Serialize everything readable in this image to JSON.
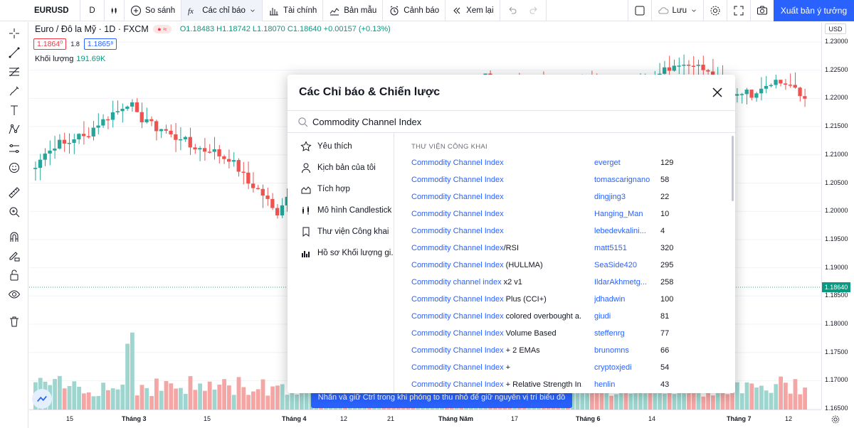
{
  "toolbar": {
    "symbol": "EURUSD",
    "interval": "D",
    "compare_label": "So sánh",
    "indicators_label": "Các chỉ báo",
    "financials_label": "Tài chính",
    "templates_label": "Bản mẫu",
    "alerts_label": "Cảnh báo",
    "replay_label": "Xem lại",
    "save_label": "Lưu",
    "publish_label": "Xuất bản ý tưởng"
  },
  "legend": {
    "symbol_title": "Euro / Đô la Mỹ · 1D · FXCM",
    "open": "O1.18483",
    "high": "H1.18742",
    "low": "L1.18070",
    "close": "C1.18640",
    "change": "+0.00157 (+0.13%)",
    "bid": "1.1864⁰",
    "spread": "1.8",
    "ask": "1.1865⁸",
    "volume_label": "Khối lượng",
    "volume_value": "191.69K"
  },
  "modal": {
    "title": "Các Chỉ báo & Chiến lược",
    "search_value": "Commodity Channel Index",
    "sidebar": [
      {
        "icon": "star-icon",
        "label": "Yêu thích"
      },
      {
        "icon": "user-icon",
        "label": "Kịch bản của tôi"
      },
      {
        "icon": "builtin-chart-icon",
        "label": "Tích hợp"
      },
      {
        "icon": "candlestick-icon",
        "label": "Mô hình Candlestick"
      },
      {
        "icon": "bookmark-icon",
        "label": "Thư viện Công khai"
      },
      {
        "icon": "volume-profile-icon",
        "label": "Hồ sơ Khối lượng gi..."
      }
    ],
    "section_title": "THƯ VIỆN CÔNG KHAI",
    "rows": [
      {
        "hl": "Commodity Channel Index",
        "rest": "",
        "author": "everget",
        "count": "129"
      },
      {
        "hl": "Commodity Channel Index",
        "rest": "",
        "author": "tomascarignano",
        "count": "58"
      },
      {
        "hl": "Commodity Channel Index",
        "rest": "",
        "author": "dingjing3",
        "count": "22"
      },
      {
        "hl": "Commodity Channel Index",
        "rest": "",
        "author": "Hanging_Man",
        "count": "10"
      },
      {
        "hl": "Commodity Channel Index",
        "rest": "",
        "author": "lebedevkalini...",
        "count": "4"
      },
      {
        "hl": "Commodity Channel Index",
        "rest": "/RSI",
        "author": "matt5151",
        "count": "320"
      },
      {
        "hl": "Commodity Channel Index",
        "rest": " (HULLMA)",
        "author": "SeaSide420",
        "count": "295"
      },
      {
        "hl": "Commodity channel index",
        "rest": " x2 v1",
        "author": "IldarAkhmetg...",
        "count": "258"
      },
      {
        "hl": "Commodity Channel Index",
        "rest": " Plus (CCI+)",
        "author": "jdhadwin",
        "count": "100"
      },
      {
        "hl": "Commodity Channel Index",
        "rest": " colored overbought a...",
        "author": "giudi",
        "count": "81"
      },
      {
        "hl": "Commodity Channel Index",
        "rest": " Volume Based",
        "author": "steffenrg",
        "count": "77"
      },
      {
        "hl": "Commodity Channel Index",
        "rest": " + 2 EMAs",
        "author": "brunomns",
        "count": "66"
      },
      {
        "hl": "Commodity Channel Index",
        "rest": " +",
        "author": "cryptoxjedi",
        "count": "54"
      },
      {
        "hl": "Commodity Channel Index",
        "rest": " + Relative Strength In...",
        "author": "henlin",
        "count": "43"
      }
    ]
  },
  "toast": "Nhấn và giữ Ctrl trong khi phóng to thu nhỏ để giữ nguyên vị trí biểu đồ",
  "price_axis": {
    "currency": "USD",
    "labels": [
      "1.23000",
      "1.22500",
      "1.22000",
      "1.21500",
      "1.21000",
      "1.20500",
      "1.20000",
      "1.19500",
      "1.19000",
      "1.18500",
      "1.18000",
      "1.17500",
      "1.17000",
      "1.16500"
    ],
    "current_price": "1.18640"
  },
  "time_axis": [
    "15",
    "Tháng 3",
    "15",
    "Tháng 4",
    "12",
    "21",
    "Tháng Năm",
    "17",
    "Tháng 6",
    "14",
    "Tháng 7",
    "12"
  ],
  "colors": {
    "up": "#26a69a",
    "down": "#ef5350",
    "accent": "#2962ff"
  }
}
